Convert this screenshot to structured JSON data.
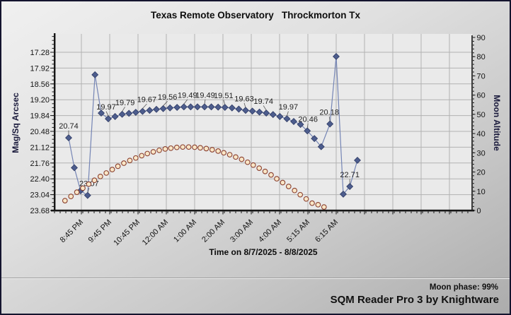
{
  "footer": {
    "moon_phase": "Moon phase: 99%",
    "status": "SQM Reader Pro 3 by Knightware"
  },
  "colors": {
    "plot_bg": "#eaeaea",
    "grid": "#b2b2b2",
    "axis": "#161616",
    "tick_text": "#141414",
    "annotation": "#222222",
    "sqm_line": "#7585b5",
    "sqm_marker": "#4d5d8d",
    "sqm_marker_edge": "#2e3a64",
    "moon_fill": "#f9e6c6",
    "moon_edge": "#8a4030"
  },
  "chart_data": {
    "type": "line",
    "title": "Texas Remote Observatory   Throckmorton Tx",
    "grid": true,
    "legend": "none",
    "x_axis": {
      "label": "Time on 8/7/2025 - 8/8/2025",
      "tick_labels": [
        "8:45 PM",
        "9:45 PM",
        "10:45 PM",
        "12:00 AM",
        "1:00 AM",
        "2:00 AM",
        "3:00 AM",
        "4:00 AM",
        "5:15 AM",
        "6:15 AM"
      ],
      "gridline_count": 14,
      "note": "x values below are in gridline units: 0 = 8:45 PM tick, 1 = 9:45 PM, ... 9 = 6:15 AM; gridlines continue unlabeled to 13"
    },
    "y_left": {
      "label": "Mag/Sq Arcsec",
      "ticks": [
        "17.28",
        "17.92",
        "18.56",
        "19.20",
        "19.84",
        "20.48",
        "21.12",
        "21.76",
        "22.40",
        "23.04",
        "23.68"
      ],
      "min": 17.28,
      "max": 23.68,
      "direction": "inverted: smaller magnitude (brighter) plotted higher"
    },
    "y_right": {
      "label": "Moon Altitude",
      "ticks": [
        "90",
        "80",
        "70",
        "60",
        "50",
        "40",
        "30",
        "20",
        "10",
        "0"
      ],
      "min": 0,
      "max": 90
    },
    "series": [
      {
        "name": "Sky brightness (Mag/Sq Arcsec)",
        "axis": "left",
        "marker": "diamond",
        "points": [
          [
            -0.45,
            20.74
          ],
          [
            -0.25,
            21.95
          ],
          [
            -0.03,
            22.88
          ],
          [
            0.22,
            23.07
          ],
          [
            0.48,
            18.19
          ],
          [
            0.7,
            19.74
          ],
          [
            0.95,
            19.97
          ],
          [
            1.19,
            19.88
          ],
          [
            1.44,
            19.79
          ],
          [
            1.68,
            19.75
          ],
          [
            1.92,
            19.71
          ],
          [
            2.16,
            19.67
          ],
          [
            2.41,
            19.63
          ],
          [
            2.65,
            19.59
          ],
          [
            2.89,
            19.56
          ],
          [
            3.13,
            19.53
          ],
          [
            3.38,
            19.51
          ],
          [
            3.62,
            19.49
          ],
          [
            3.86,
            19.49
          ],
          [
            4.1,
            19.49
          ],
          [
            4.35,
            19.49
          ],
          [
            4.59,
            19.49
          ],
          [
            4.83,
            19.5
          ],
          [
            5.07,
            19.51
          ],
          [
            5.32,
            19.53
          ],
          [
            5.56,
            19.58
          ],
          [
            5.8,
            19.63
          ],
          [
            6.04,
            19.66
          ],
          [
            6.29,
            19.7
          ],
          [
            6.53,
            19.74
          ],
          [
            6.77,
            19.8
          ],
          [
            7.01,
            19.88
          ],
          [
            7.26,
            19.97
          ],
          [
            7.5,
            20.08
          ],
          [
            7.74,
            20.2
          ],
          [
            7.98,
            20.46
          ],
          [
            8.23,
            20.77
          ],
          [
            8.47,
            21.1
          ],
          [
            8.78,
            20.18
          ],
          [
            9.0,
            17.45
          ],
          [
            9.25,
            23.02
          ],
          [
            9.48,
            22.71
          ],
          [
            9.75,
            21.65
          ]
        ]
      },
      {
        "name": "Moon Altitude (deg)",
        "axis": "right",
        "marker": "circle",
        "points": [
          [
            -0.58,
            5.1
          ],
          [
            -0.37,
            7.3
          ],
          [
            -0.16,
            9.5
          ],
          [
            0.05,
            11.6
          ],
          [
            0.26,
            13.7
          ],
          [
            0.46,
            15.7
          ],
          [
            0.67,
            17.7
          ],
          [
            0.88,
            19.5
          ],
          [
            1.09,
            21.3
          ],
          [
            1.29,
            23.0
          ],
          [
            1.5,
            24.6
          ],
          [
            1.71,
            26.0
          ],
          [
            1.92,
            27.3
          ],
          [
            2.13,
            28.5
          ],
          [
            2.33,
            29.6
          ],
          [
            2.54,
            30.5
          ],
          [
            2.75,
            31.3
          ],
          [
            2.96,
            32.0
          ],
          [
            3.16,
            32.4
          ],
          [
            3.37,
            32.8
          ],
          [
            3.58,
            33.0
          ],
          [
            3.79,
            33.0
          ],
          [
            4.0,
            32.9
          ],
          [
            4.2,
            32.6
          ],
          [
            4.41,
            32.2
          ],
          [
            4.62,
            31.6
          ],
          [
            4.83,
            30.9
          ],
          [
            5.03,
            30.0
          ],
          [
            5.24,
            29.0
          ],
          [
            5.45,
            27.8
          ],
          [
            5.66,
            26.6
          ],
          [
            5.87,
            25.1
          ],
          [
            6.07,
            23.6
          ],
          [
            6.28,
            22.0
          ],
          [
            6.49,
            20.3
          ],
          [
            6.7,
            18.5
          ],
          [
            6.9,
            16.5
          ],
          [
            7.11,
            14.5
          ],
          [
            7.32,
            12.5
          ],
          [
            7.53,
            10.4
          ],
          [
            7.73,
            8.2
          ],
          [
            7.94,
            6.0
          ],
          [
            8.15,
            3.8
          ],
          [
            8.36,
            3.0
          ],
          [
            8.57,
            1.8
          ]
        ]
      }
    ],
    "annotations": [
      {
        "point": 0,
        "text": "20.74",
        "dx": 0
      },
      {
        "point": 3,
        "text": "23.07",
        "dx": 2
      },
      {
        "point": 6,
        "text": "19.97",
        "dx": -3
      },
      {
        "point": 8,
        "text": "19.79",
        "dx": 4
      },
      {
        "point": 11,
        "text": "19.67",
        "dx": 6
      },
      {
        "point": 14,
        "text": "19.56",
        "dx": 6
      },
      {
        "point": 17,
        "text": "19.49",
        "dx": 5
      },
      {
        "point": 20,
        "text": "19.49",
        "dx": 1
      },
      {
        "point": 23,
        "text": "19.51",
        "dx": -2
      },
      {
        "point": 26,
        "text": "19.63",
        "dx": -2
      },
      {
        "point": 29,
        "text": "19.74",
        "dx": -4
      },
      {
        "point": 32,
        "text": "19.97",
        "dx": 2
      },
      {
        "point": 35,
        "text": "20.46",
        "dx": 1
      },
      {
        "point": 38,
        "text": "20.18",
        "dx": -1
      },
      {
        "point": 41,
        "text": "22.71",
        "dx": 0
      }
    ]
  }
}
